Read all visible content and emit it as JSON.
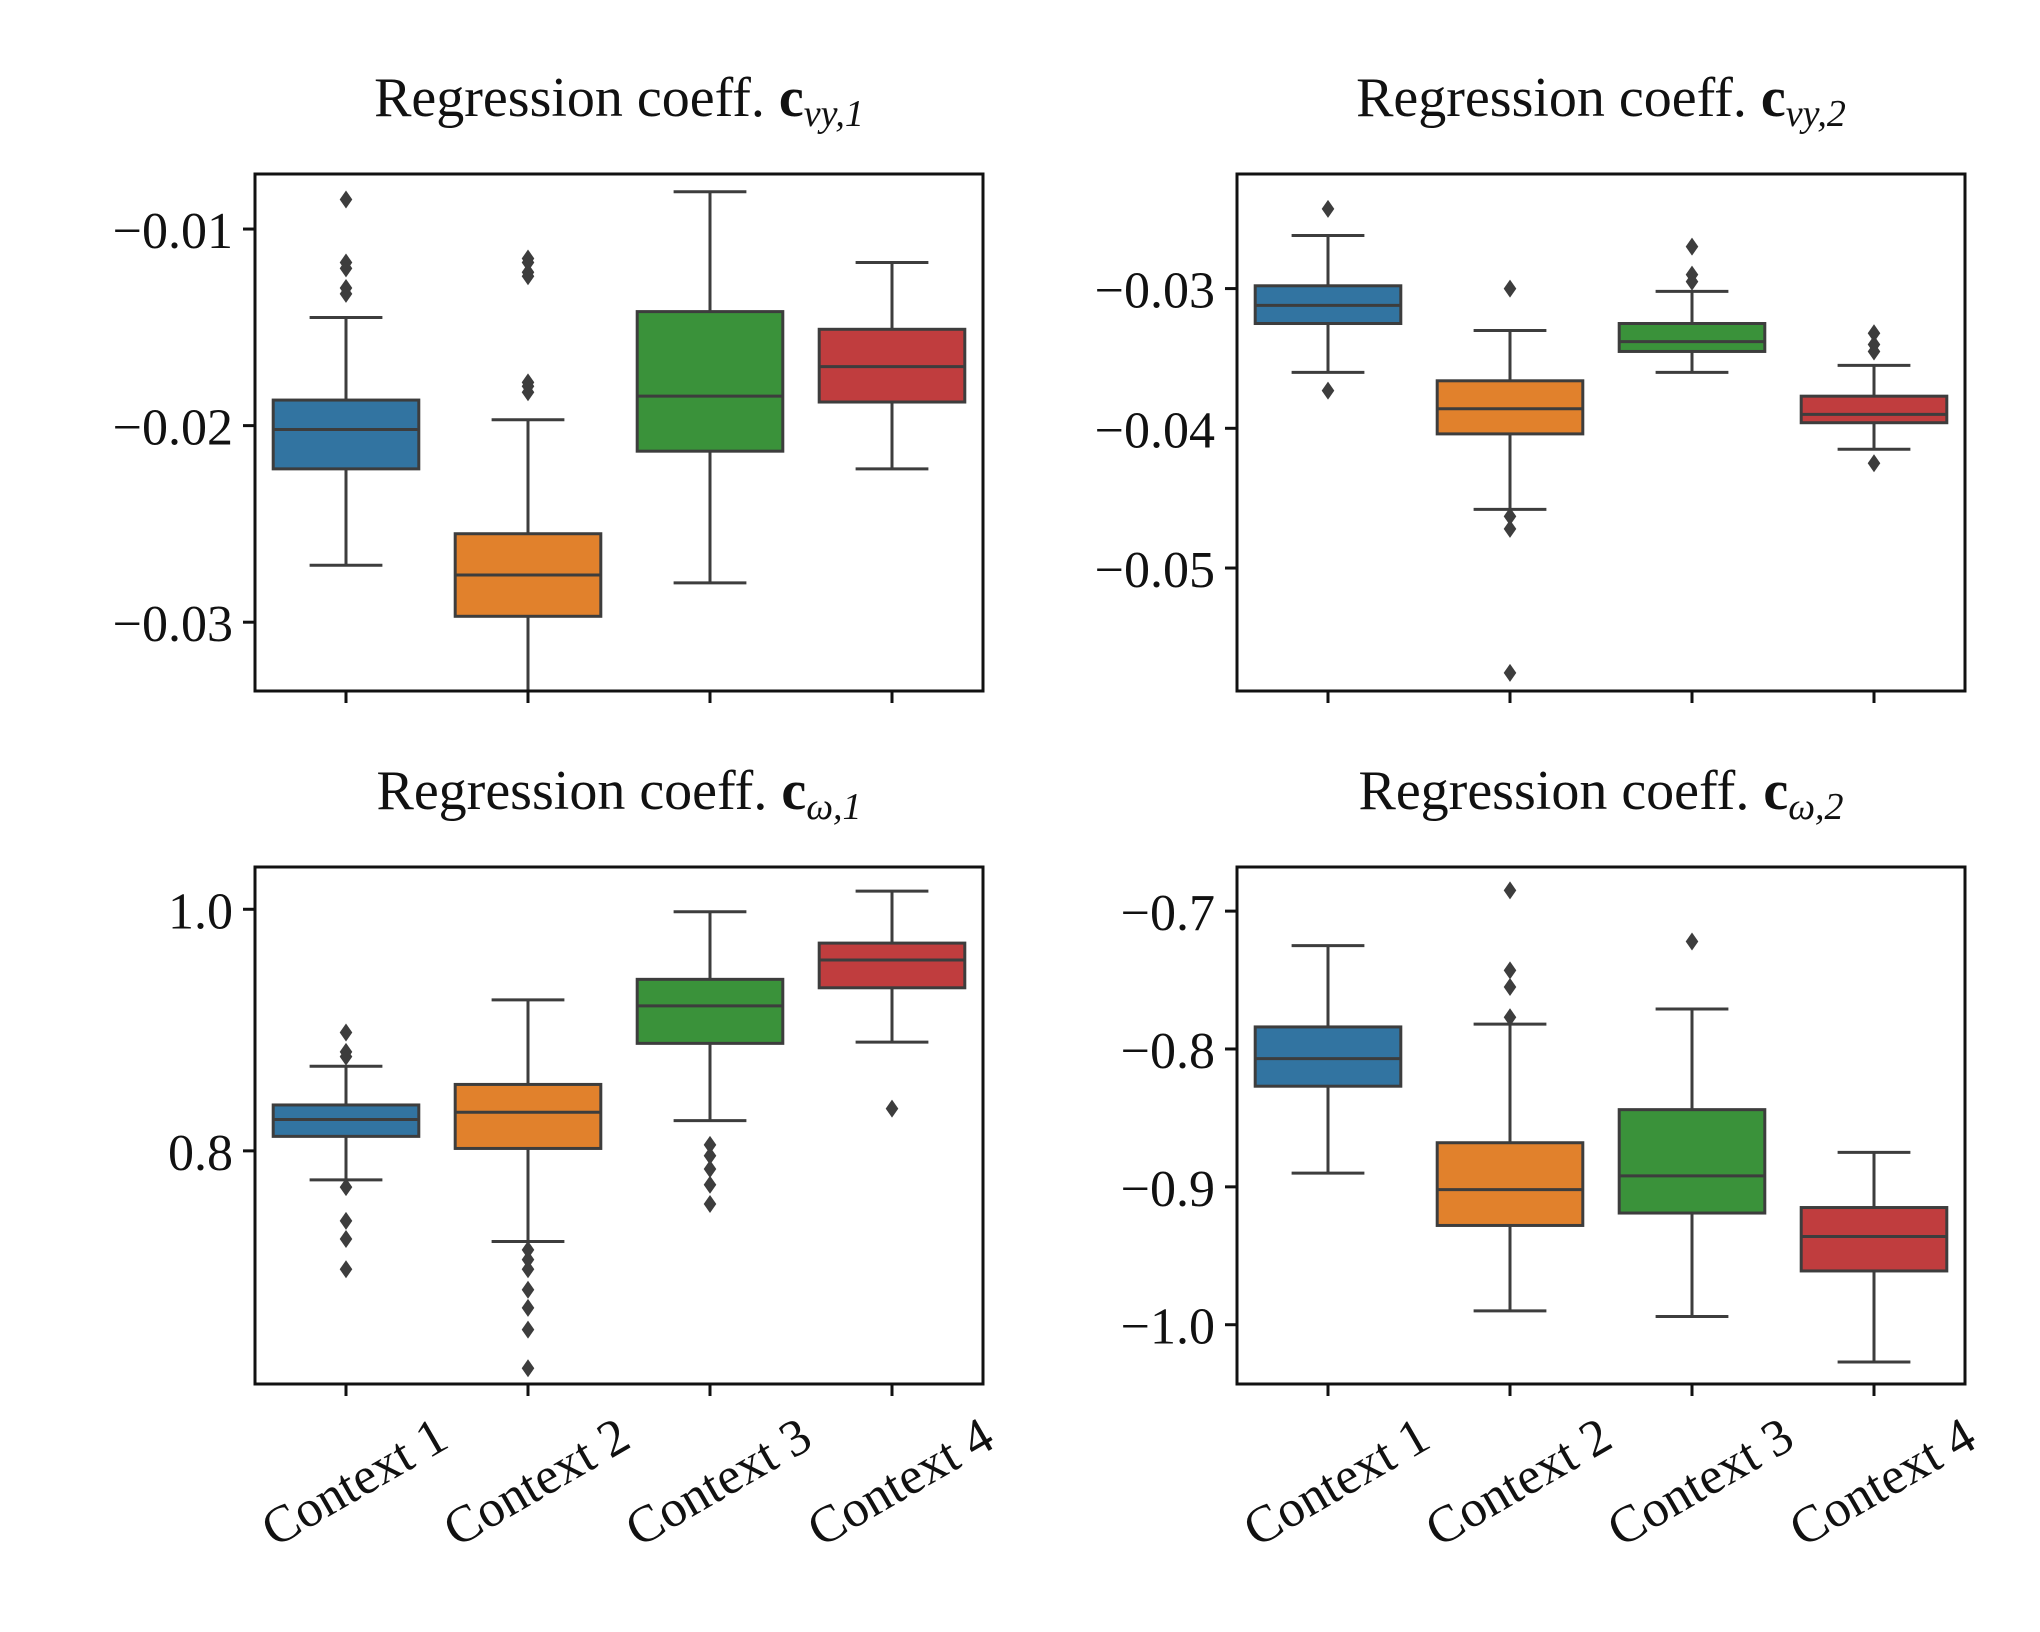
{
  "chart_data": [
    {
      "type": "box",
      "title": {
        "prefix": "Regression coeff. ",
        "symbol": "c",
        "subscript": "vy,1"
      },
      "xlabel": "",
      "ylabel": "",
      "categories": [
        "Context 1",
        "Context 2",
        "Context 3",
        "Context 4"
      ],
      "show_xticklabels": false,
      "ylim": [
        -0.0335,
        -0.0072
      ],
      "yticks": [
        -0.03,
        -0.02,
        -0.01
      ],
      "yticklabels": [
        "−0.03",
        "−0.02",
        "−0.01"
      ],
      "colors": [
        "#3274a1",
        "#e1812c",
        "#3a923a",
        "#c03d3e"
      ],
      "boxes": [
        {
          "whisker_low": -0.0271,
          "q1": -0.0222,
          "median": -0.0202,
          "q3": -0.0187,
          "whisker_high": -0.0145,
          "outliers": [
            -0.0085,
            -0.0117,
            -0.012,
            -0.013,
            -0.0133
          ]
        },
        {
          "whisker_low": -0.0335,
          "q1": -0.0297,
          "median": -0.0276,
          "q3": -0.0255,
          "whisker_high": -0.0197,
          "outliers": [
            -0.0115,
            -0.0117,
            -0.0122,
            -0.0124,
            -0.0178,
            -0.018,
            -0.0183
          ]
        },
        {
          "whisker_low": -0.028,
          "q1": -0.0213,
          "median": -0.0185,
          "q3": -0.0142,
          "whisker_high": -0.0081,
          "outliers": []
        },
        {
          "whisker_low": -0.0222,
          "q1": -0.0188,
          "median": -0.017,
          "q3": -0.0151,
          "whisker_high": -0.0117,
          "outliers": []
        }
      ]
    },
    {
      "type": "box",
      "title": {
        "prefix": "Regression coeff. ",
        "symbol": "c",
        "subscript": "vy,2"
      },
      "xlabel": "",
      "ylabel": "",
      "categories": [
        "Context 1",
        "Context 2",
        "Context 3",
        "Context 4"
      ],
      "show_xticklabels": false,
      "ylim": [
        -0.0588,
        -0.0218
      ],
      "yticks": [
        -0.05,
        -0.04,
        -0.03
      ],
      "yticklabels": [
        "−0.05",
        "−0.04",
        "−0.03"
      ],
      "colors": [
        "#3274a1",
        "#e1812c",
        "#3a923a",
        "#c03d3e"
      ],
      "boxes": [
        {
          "whisker_low": -0.036,
          "q1": -0.0325,
          "median": -0.0312,
          "q3": -0.0298,
          "whisker_high": -0.0262,
          "outliers": [
            -0.0243,
            -0.0373
          ]
        },
        {
          "whisker_low": -0.0458,
          "q1": -0.0404,
          "median": -0.0386,
          "q3": -0.0366,
          "whisker_high": -0.033,
          "outliers": [
            -0.03,
            -0.0463,
            -0.0472,
            -0.0575
          ]
        },
        {
          "whisker_low": -0.036,
          "q1": -0.0345,
          "median": -0.0338,
          "q3": -0.0325,
          "whisker_high": -0.0302,
          "outliers": [
            -0.027,
            -0.029,
            -0.0295
          ]
        },
        {
          "whisker_low": -0.0415,
          "q1": -0.0396,
          "median": -0.039,
          "q3": -0.0377,
          "whisker_high": -0.0355,
          "outliers": [
            -0.0332,
            -0.034,
            -0.0345,
            -0.0425
          ]
        }
      ]
    },
    {
      "type": "box",
      "title": {
        "prefix": "Regression coeff. ",
        "symbol": "c",
        "subscript": "ω,1"
      },
      "xlabel": "",
      "ylabel": "",
      "categories": [
        "Context 1",
        "Context 2",
        "Context 3",
        "Context 4"
      ],
      "show_xticklabels": true,
      "ylim": [
        0.607,
        1.035
      ],
      "yticks": [
        0.8,
        1.0
      ],
      "yticklabels": [
        "0.8",
        "1.0"
      ],
      "colors": [
        "#3274a1",
        "#e1812c",
        "#3a923a",
        "#c03d3e"
      ],
      "boxes": [
        {
          "whisker_low": 0.776,
          "q1": 0.812,
          "median": 0.826,
          "q3": 0.838,
          "whisker_high": 0.87,
          "outliers": [
            0.898,
            0.882,
            0.878,
            0.77,
            0.742,
            0.727,
            0.702
          ]
        },
        {
          "whisker_low": 0.725,
          "q1": 0.802,
          "median": 0.832,
          "q3": 0.855,
          "whisker_high": 0.925,
          "outliers": [
            0.718,
            0.71,
            0.702,
            0.685,
            0.67,
            0.652,
            0.62
          ]
        },
        {
          "whisker_low": 0.825,
          "q1": 0.889,
          "median": 0.92,
          "q3": 0.942,
          "whisker_high": 0.998,
          "outliers": [
            0.805,
            0.796,
            0.785,
            0.772,
            0.756
          ]
        },
        {
          "whisker_low": 0.89,
          "q1": 0.935,
          "median": 0.958,
          "q3": 0.972,
          "whisker_high": 1.015,
          "outliers": [
            0.835
          ]
        }
      ]
    },
    {
      "type": "box",
      "title": {
        "prefix": "Regression coeff. ",
        "symbol": "c",
        "subscript": "ω,2"
      },
      "xlabel": "",
      "ylabel": "",
      "categories": [
        "Context 1",
        "Context 2",
        "Context 3",
        "Context 4"
      ],
      "show_xticklabels": true,
      "ylim": [
        -1.043,
        -0.668
      ],
      "yticks": [
        -1.0,
        -0.9,
        -0.8,
        -0.7
      ],
      "yticklabels": [
        "−1.0",
        "−0.9",
        "−0.8",
        "−0.7"
      ],
      "colors": [
        "#3274a1",
        "#e1812c",
        "#3a923a",
        "#c03d3e"
      ],
      "boxes": [
        {
          "whisker_low": -0.89,
          "q1": -0.827,
          "median": -0.807,
          "q3": -0.784,
          "whisker_high": -0.725,
          "outliers": []
        },
        {
          "whisker_low": -0.99,
          "q1": -0.928,
          "median": -0.902,
          "q3": -0.868,
          "whisker_high": -0.782,
          "outliers": [
            -0.685,
            -0.743,
            -0.755,
            -0.777
          ]
        },
        {
          "whisker_low": -0.994,
          "q1": -0.919,
          "median": -0.892,
          "q3": -0.844,
          "whisker_high": -0.771,
          "outliers": [
            -0.722
          ]
        },
        {
          "whisker_low": -1.027,
          "q1": -0.961,
          "median": -0.936,
          "q3": -0.915,
          "whisker_high": -0.875,
          "outliers": []
        }
      ]
    }
  ]
}
